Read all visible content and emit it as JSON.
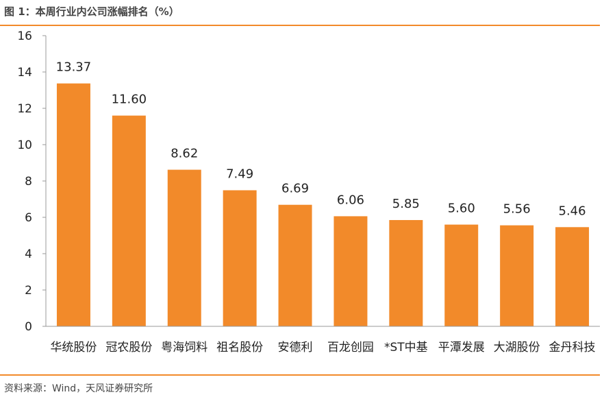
{
  "figure_title": "图 1：本周行业内公司涨幅排名（%）",
  "source_note": "资料来源：Wind，天风证券研究所",
  "colors": {
    "bar": "#f28a2a",
    "rule": "#f28a2a",
    "axis": "#999999"
  },
  "chart_data": {
    "type": "bar",
    "title": "",
    "xlabel": "",
    "ylabel": "",
    "ylim": [
      0,
      16
    ],
    "yticks": [
      0,
      2,
      4,
      6,
      8,
      10,
      12,
      14,
      16
    ],
    "grid": false,
    "categories": [
      "华统股份",
      "冠农股份",
      "粤海饲料",
      "祖名股份",
      "安德利",
      "百龙创园",
      "*ST中基",
      "平潭发展",
      "大湖股份",
      "金丹科技"
    ],
    "values": [
      13.37,
      11.6,
      8.62,
      7.49,
      6.69,
      6.06,
      5.85,
      5.6,
      5.56,
      5.46
    ],
    "value_labels": [
      "13.37",
      "11.60",
      "8.62",
      "7.49",
      "6.69",
      "6.06",
      "5.85",
      "5.60",
      "5.56",
      "5.46"
    ]
  }
}
